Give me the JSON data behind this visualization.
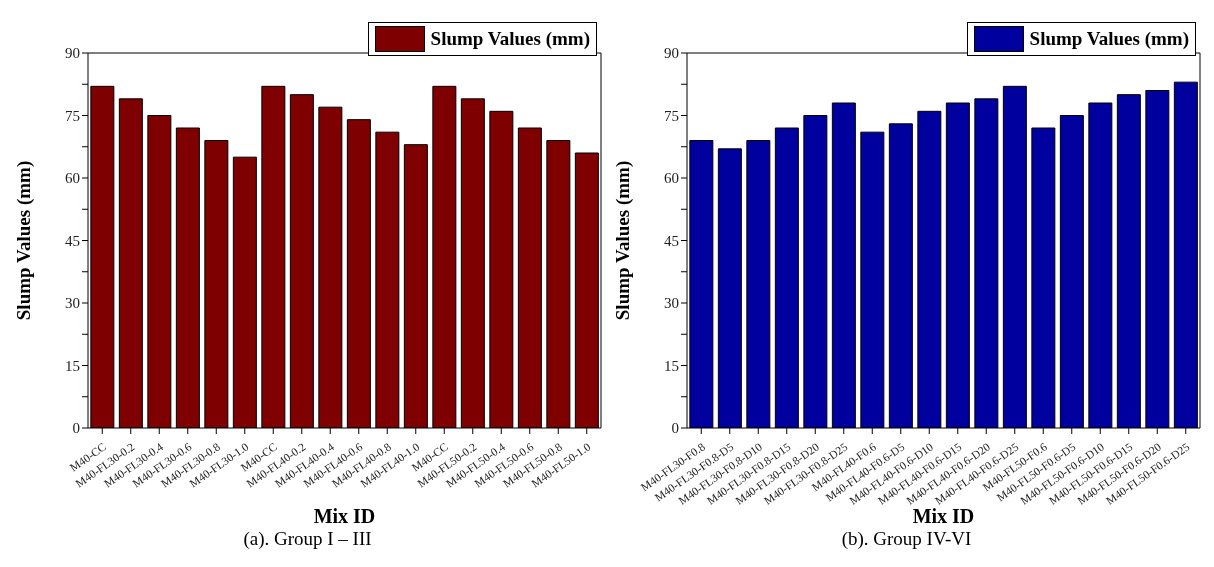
{
  "chart_data": [
    {
      "type": "bar",
      "xlabel": "Mix ID",
      "ylabel": "Slump Values (mm)",
      "categories": [
        "M40-CC",
        "M40-FL30-0.2",
        "M40-FL30-0.4",
        "M40-FL30-0.6",
        "M40-FL30-0.8",
        "M40-FL30-1.0",
        "M40-CC",
        "M40-FL40-0.2",
        "M40-FL40-0.4",
        "M40-FL40-0.6",
        "M40-FL40-0.8",
        "M40-FL40-1.0",
        "M40-CC",
        "M40-FL50-0.2",
        "M40-FL50-0.4",
        "M40-FL50-0.6",
        "M40-FL50-0.8",
        "M40-FL50-1.0"
      ],
      "series": [
        {
          "name": "Slump Values (mm)",
          "color": "#7f0000",
          "values": [
            82,
            79,
            75,
            72,
            69,
            65,
            82,
            80,
            77,
            74,
            71,
            68,
            82,
            79,
            76,
            72,
            69,
            66
          ]
        }
      ],
      "ylim": [
        0,
        90
      ],
      "yticks": [
        0,
        {
          "value": 7.5,
          "label": null
        },
        15,
        {
          "value": 22.5,
          "label": null
        },
        30,
        {
          "value": 37.5,
          "label": null
        },
        45,
        {
          "value": 52.5,
          "label": null
        },
        60,
        {
          "value": 67.5,
          "label": null
        },
        75,
        {
          "value": 82.5,
          "label": null
        },
        90
      ],
      "legend": "top right",
      "annotations": [
        "(a). Group I – III"
      ]
    },
    {
      "type": "bar",
      "xlabel": "Mix ID",
      "ylabel": "Slump Values (mm)",
      "categories": [
        "M40-FL30-F0.8",
        "M40-FL30-F0.8-D5",
        "M40-FL30-F0.8-D10",
        "M40-FL30-F0.8-D15",
        "M40-FL30-F0.8-D20",
        "M40-FL30-F0.8-D25",
        "M40-FL40-F0.6",
        "M40-FL40-F0.6-D5",
        "M40-FL40-F0.6-D10",
        "M40-FL40-F0.6-D15",
        "M40-FL40-F0.6-D20",
        "M40-FL40-F0.6-D25",
        "M40-FL50-F0.6",
        "M40-FL50-F0.6-D5",
        "M40-FL50-F0.6-D10",
        "M40-FL50-F0.6-D15",
        "M40-FL50-F0.6-D20",
        "M40-FL50-F0.6-D25"
      ],
      "series": [
        {
          "name": "Slump Values (mm)",
          "color": "#00009f",
          "values": [
            69,
            67,
            69,
            72,
            75,
            78,
            71,
            73,
            76,
            78,
            79,
            82,
            72,
            75,
            78,
            80,
            81,
            83
          ]
        }
      ],
      "ylim": [
        0,
        90
      ],
      "yticks": [
        0,
        {
          "value": 7.5,
          "label": null
        },
        15,
        {
          "value": 22.5,
          "label": null
        },
        30,
        {
          "value": 37.5,
          "label": null
        },
        45,
        {
          "value": 52.5,
          "label": null
        },
        60,
        {
          "value": 67.5,
          "label": null
        },
        75,
        {
          "value": 82.5,
          "label": null
        },
        90
      ],
      "legend": "top right",
      "annotations": [
        "(b). Group IV-VI"
      ]
    }
  ]
}
